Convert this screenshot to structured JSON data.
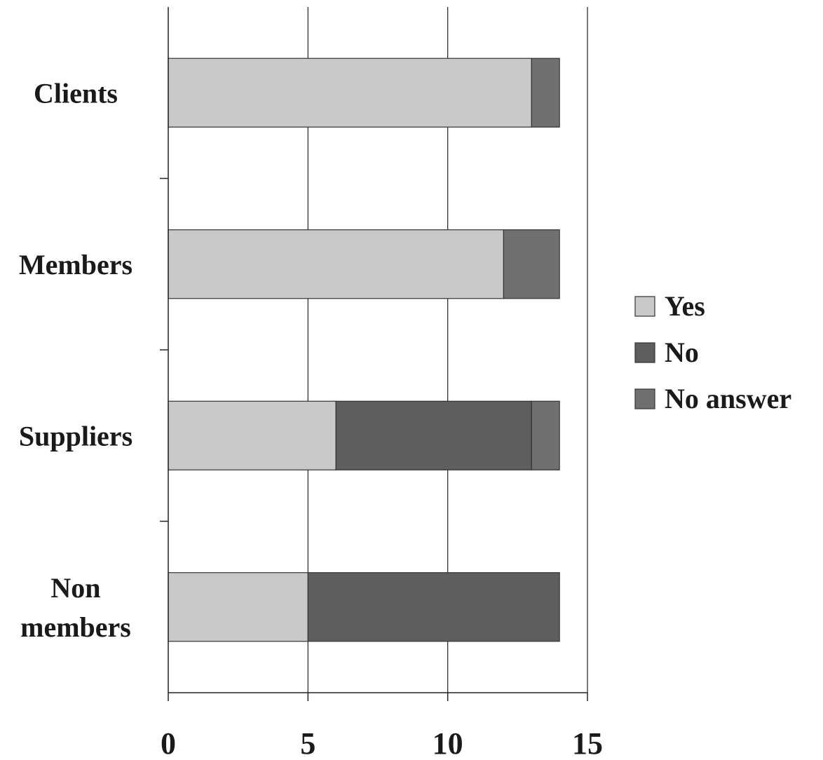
{
  "chart_data": {
    "type": "bar",
    "orientation": "horizontal",
    "stacked": true,
    "categories": [
      [
        "Clients"
      ],
      [
        "Members"
      ],
      [
        "Suppliers"
      ],
      [
        "Non",
        "members"
      ]
    ],
    "series": [
      {
        "name": "Yes",
        "values": [
          13,
          12,
          6,
          5
        ],
        "color": "#c9c9c9"
      },
      {
        "name": "No",
        "values": [
          0,
          0,
          7,
          9
        ],
        "color": "#5e5e5e"
      },
      {
        "name": "No answer",
        "values": [
          1,
          2,
          1,
          0
        ],
        "color": "#707070"
      }
    ],
    "xlim": [
      0,
      15
    ],
    "xticks": [
      "0",
      "5",
      "10",
      "15"
    ],
    "grid": true,
    "legend": "right"
  }
}
